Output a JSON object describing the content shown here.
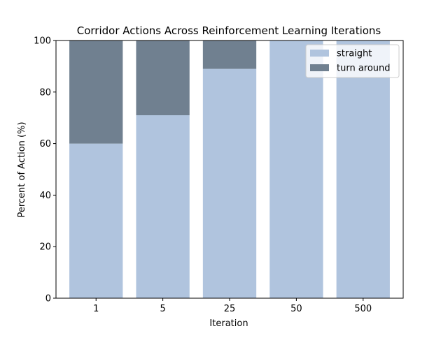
{
  "chart_data": {
    "type": "bar",
    "stacked": true,
    "title": "Corridor Actions Across Reinforcement Learning Iterations",
    "xlabel": "Iteration",
    "ylabel": "Percent of Action (%)",
    "categories": [
      "1",
      "5",
      "25",
      "50",
      "500"
    ],
    "series": [
      {
        "name": "straight",
        "values": [
          60,
          71,
          89,
          100,
          100
        ],
        "color": "#b0c4de"
      },
      {
        "name": "turn around",
        "values": [
          40,
          29,
          11,
          0,
          0
        ],
        "color": "#708090"
      }
    ],
    "ylim": [
      0,
      100
    ],
    "yticks": [
      "0",
      "20",
      "40",
      "60",
      "80",
      "100"
    ],
    "grid": false,
    "legend_position": "top-right"
  }
}
